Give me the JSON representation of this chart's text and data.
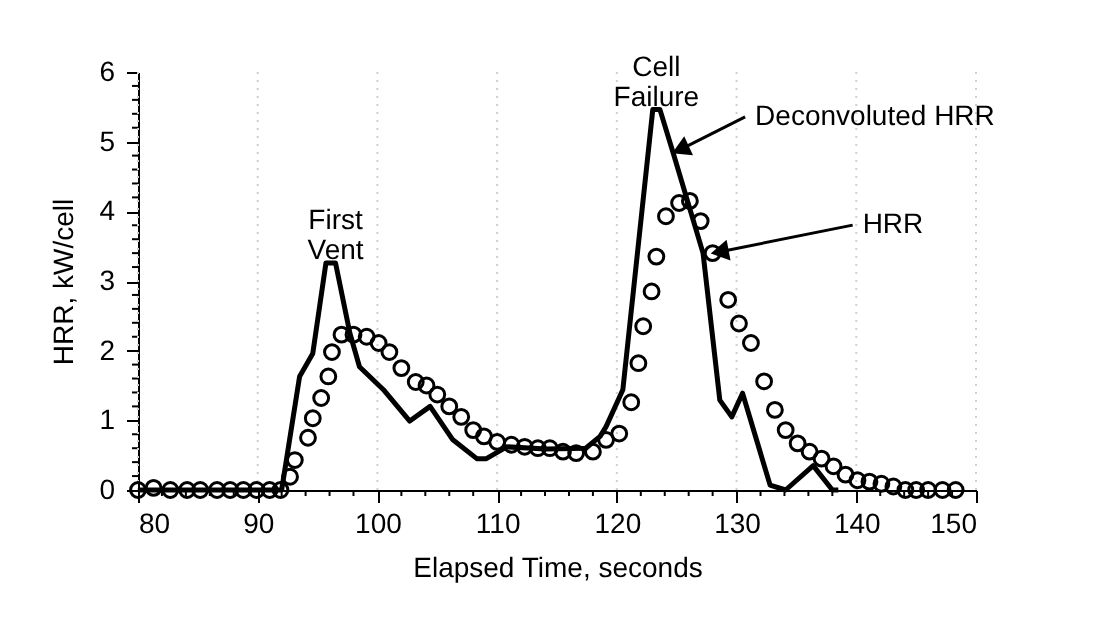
{
  "chart_data": {
    "type": "line",
    "xlabel": "Elapsed Time, seconds",
    "ylabel": "HRR, kW/cell",
    "xlim": [
      80,
      150
    ],
    "ylim": [
      0,
      6
    ],
    "xticks": [
      80,
      {
        "value": 82,
        "label": null
      },
      {
        "value": 84,
        "label": null
      },
      {
        "value": 86,
        "label": null
      },
      {
        "value": 88,
        "label": null
      },
      90,
      {
        "value": 92,
        "label": null
      },
      {
        "value": 94,
        "label": null
      },
      {
        "value": 96,
        "label": null
      },
      {
        "value": 98,
        "label": null
      },
      100,
      {
        "value": 102,
        "label": null
      },
      {
        "value": 104,
        "label": null
      },
      {
        "value": 106,
        "label": null
      },
      {
        "value": 108,
        "label": null
      },
      110,
      {
        "value": 112,
        "label": null
      },
      {
        "value": 114,
        "label": null
      },
      {
        "value": 116,
        "label": null
      },
      {
        "value": 118,
        "label": null
      },
      120,
      {
        "value": 122,
        "label": null
      },
      {
        "value": 124,
        "label": null
      },
      {
        "value": 126,
        "label": null
      },
      {
        "value": 128,
        "label": null
      },
      130,
      {
        "value": 132,
        "label": null
      },
      {
        "value": 134,
        "label": null
      },
      {
        "value": 136,
        "label": null
      },
      {
        "value": 138,
        "label": null
      },
      140,
      {
        "value": 142,
        "label": null
      },
      {
        "value": 144,
        "label": null
      },
      {
        "value": 146,
        "label": null
      },
      {
        "value": 148,
        "label": null
      },
      150
    ],
    "yticks": [
      0,
      {
        "value": 0.2,
        "label": null
      },
      {
        "value": 0.4,
        "label": null
      },
      {
        "value": 0.6,
        "label": null
      },
      {
        "value": 0.8,
        "label": null
      },
      1,
      {
        "value": 1.2,
        "label": null
      },
      {
        "value": 1.4,
        "label": null
      },
      {
        "value": 1.6,
        "label": null
      },
      {
        "value": 1.8,
        "label": null
      },
      2,
      {
        "value": 2.2,
        "label": null
      },
      {
        "value": 2.4,
        "label": null
      },
      {
        "value": 2.6,
        "label": null
      },
      {
        "value": 2.8,
        "label": null
      },
      3,
      {
        "value": 3.2,
        "label": null
      },
      {
        "value": 3.4,
        "label": null
      },
      {
        "value": 3.6,
        "label": null
      },
      {
        "value": 3.8,
        "label": null
      },
      4,
      {
        "value": 4.2,
        "label": null
      },
      {
        "value": 4.4,
        "label": null
      },
      {
        "value": 4.6,
        "label": null
      },
      {
        "value": 4.8,
        "label": null
      },
      5,
      {
        "value": 5.2,
        "label": null
      },
      {
        "value": 5.4,
        "label": null
      },
      {
        "value": 5.6,
        "label": null
      },
      {
        "value": 5.8,
        "label": null
      },
      6
    ],
    "grid": "x",
    "legend": "top right",
    "annotations": [
      {
        "text": "First Vent",
        "x": 96.5,
        "y": 3.26
      },
      {
        "text": "Cell Failure",
        "x": 123.3,
        "y": 5.46
      }
    ],
    "series": [
      {
        "name": "Deconvoluted HRR",
        "color": "#000000",
        "marker": "none",
        "line_style": "solid",
        "x": [
          80,
          92,
          93.5,
          94.6,
          95.7,
          96.5,
          97.7,
          98.5,
          100.5,
          102.7,
          104.4,
          106.3,
          108.3,
          109.1,
          110.8,
          114.1,
          117.4,
          118.6,
          119.1,
          120.5,
          123,
          123.6,
          124.7,
          127.2,
          128.6,
          129.6,
          130.5,
          132.8,
          134.1,
          136.4,
          138,
          138.5
        ],
        "values": [
          0,
          0,
          1.63,
          1.96,
          3.26,
          3.26,
          2.25,
          1.77,
          1.44,
          0.99,
          1.2,
          0.72,
          0.45,
          0.45,
          0.62,
          0.59,
          0.6,
          0.77,
          0.91,
          1.44,
          5.46,
          5.46,
          4.84,
          3.4,
          1.29,
          1.05,
          1.39,
          0.07,
          0,
          0.35,
          0,
          0
        ]
      },
      {
        "name": "HRR",
        "type": "scatter",
        "color": "#000000",
        "marker": "circle",
        "x": [
          80,
          81.3,
          82.7,
          84.1,
          85.2,
          86.6,
          87.7,
          88.8,
          89.9,
          91,
          91.9,
          92.7,
          93.1,
          94.2,
          94.6,
          95.3,
          95.9,
          96.2,
          97,
          98,
          99.1,
          100.1,
          101,
          102,
          103.2,
          104.1,
          105,
          106,
          107,
          108,
          108.9,
          110,
          111.2,
          112.3,
          113.4,
          114.4,
          115.5,
          116.6,
          118,
          119.1,
          120.2,
          121.2,
          121.8,
          122.2,
          122.9,
          123.3,
          124.1,
          125.2,
          126.1,
          127,
          128,
          129.3,
          130.2,
          131.2,
          132.3,
          133.2,
          134.1,
          135.1,
          136.1,
          137.1,
          138.1,
          139.1,
          140.1,
          141.1,
          142.1,
          143.1,
          144.1,
          145,
          146,
          147.2,
          148.3
        ],
        "values": [
          0,
          0.03,
          0,
          0,
          0,
          0,
          0,
          0,
          0,
          0,
          0,
          0.19,
          0.43,
          0.75,
          1.03,
          1.32,
          1.63,
          1.98,
          2.23,
          2.23,
          2.2,
          2.11,
          1.98,
          1.75,
          1.55,
          1.5,
          1.37,
          1.2,
          1.05,
          0.86,
          0.77,
          0.69,
          0.65,
          0.62,
          0.6,
          0.6,
          0.55,
          0.53,
          0.55,
          0.72,
          0.81,
          1.26,
          1.82,
          2.35,
          2.85,
          3.35,
          3.93,
          4.12,
          4.15,
          3.86,
          3.4,
          2.73,
          2.39,
          2.11,
          1.56,
          1.15,
          0.86,
          0.67,
          0.55,
          0.45,
          0.34,
          0.22,
          0.14,
          0.12,
          0.09,
          0.05,
          0,
          0,
          0,
          0,
          0
        ]
      }
    ]
  }
}
